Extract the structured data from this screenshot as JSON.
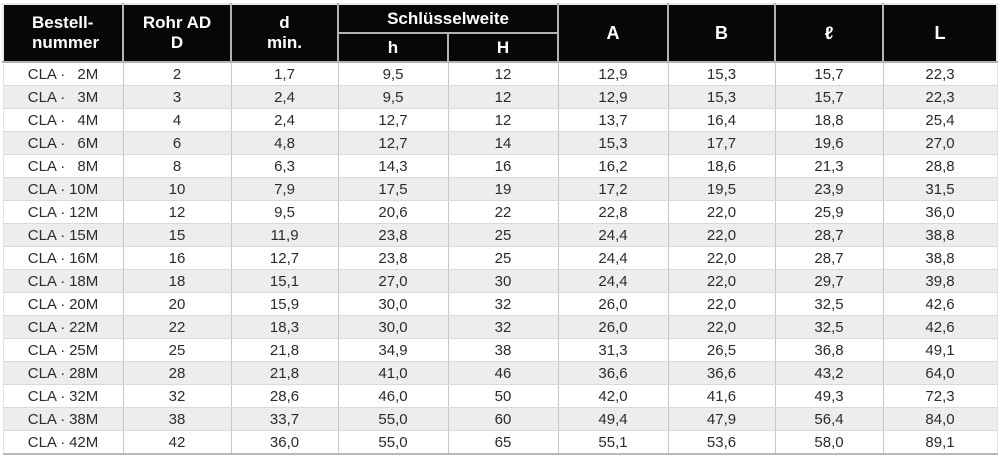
{
  "colors": {
    "header_bg": "#070707",
    "header_text": "#ffffff",
    "row_alt_bg": "#ededed",
    "grid_vertical": "#c6c6c6",
    "grid_horizontal": "#d9d9d9",
    "body_text": "#2b2b2b"
  },
  "table": {
    "headers": {
      "bestellnummer_line1": "Bestell-",
      "bestellnummer_line2": "nummer",
      "rohr_ad_line1": "Rohr AD",
      "rohr_ad_line2": "D",
      "d_min_line1": "d",
      "d_min_line2": "min.",
      "schluesselweite": "Schlüsselweite",
      "sub_h": "h",
      "sub_H": "H",
      "a": "A",
      "b": "B",
      "l_script": "ℓ",
      "l_big": "L"
    },
    "order_prefix": "CLA ·",
    "value_keys": [
      "rohr_ad",
      "d_min",
      "h",
      "H",
      "A",
      "B",
      "l",
      "L"
    ],
    "rows": [
      {
        "code": "2M",
        "rohr_ad": "2",
        "d_min": "1,7",
        "h": "9,5",
        "H": "12",
        "A": "12,9",
        "B": "15,3",
        "l": "15,7",
        "L": "22,3"
      },
      {
        "code": "3M",
        "rohr_ad": "3",
        "d_min": "2,4",
        "h": "9,5",
        "H": "12",
        "A": "12,9",
        "B": "15,3",
        "l": "15,7",
        "L": "22,3"
      },
      {
        "code": "4M",
        "rohr_ad": "4",
        "d_min": "2,4",
        "h": "12,7",
        "H": "12",
        "A": "13,7",
        "B": "16,4",
        "l": "18,8",
        "L": "25,4"
      },
      {
        "code": "6M",
        "rohr_ad": "6",
        "d_min": "4,8",
        "h": "12,7",
        "H": "14",
        "A": "15,3",
        "B": "17,7",
        "l": "19,6",
        "L": "27,0"
      },
      {
        "code": "8M",
        "rohr_ad": "8",
        "d_min": "6,3",
        "h": "14,3",
        "H": "16",
        "A": "16,2",
        "B": "18,6",
        "l": "21,3",
        "L": "28,8"
      },
      {
        "code": "10M",
        "rohr_ad": "10",
        "d_min": "7,9",
        "h": "17,5",
        "H": "19",
        "A": "17,2",
        "B": "19,5",
        "l": "23,9",
        "L": "31,5"
      },
      {
        "code": "12M",
        "rohr_ad": "12",
        "d_min": "9,5",
        "h": "20,6",
        "H": "22",
        "A": "22,8",
        "B": "22,0",
        "l": "25,9",
        "L": "36,0"
      },
      {
        "code": "15M",
        "rohr_ad": "15",
        "d_min": "11,9",
        "h": "23,8",
        "H": "25",
        "A": "24,4",
        "B": "22,0",
        "l": "28,7",
        "L": "38,8"
      },
      {
        "code": "16M",
        "rohr_ad": "16",
        "d_min": "12,7",
        "h": "23,8",
        "H": "25",
        "A": "24,4",
        "B": "22,0",
        "l": "28,7",
        "L": "38,8"
      },
      {
        "code": "18M",
        "rohr_ad": "18",
        "d_min": "15,1",
        "h": "27,0",
        "H": "30",
        "A": "24,4",
        "B": "22,0",
        "l": "29,7",
        "L": "39,8"
      },
      {
        "code": "20M",
        "rohr_ad": "20",
        "d_min": "15,9",
        "h": "30,0",
        "H": "32",
        "A": "26,0",
        "B": "22,0",
        "l": "32,5",
        "L": "42,6"
      },
      {
        "code": "22M",
        "rohr_ad": "22",
        "d_min": "18,3",
        "h": "30,0",
        "H": "32",
        "A": "26,0",
        "B": "22,0",
        "l": "32,5",
        "L": "42,6"
      },
      {
        "code": "25M",
        "rohr_ad": "25",
        "d_min": "21,8",
        "h": "34,9",
        "H": "38",
        "A": "31,3",
        "B": "26,5",
        "l": "36,8",
        "L": "49,1"
      },
      {
        "code": "28M",
        "rohr_ad": "28",
        "d_min": "21,8",
        "h": "41,0",
        "H": "46",
        "A": "36,6",
        "B": "36,6",
        "l": "43,2",
        "L": "64,0"
      },
      {
        "code": "32M",
        "rohr_ad": "32",
        "d_min": "28,6",
        "h": "46,0",
        "H": "50",
        "A": "42,0",
        "B": "41,6",
        "l": "49,3",
        "L": "72,3"
      },
      {
        "code": "38M",
        "rohr_ad": "38",
        "d_min": "33,7",
        "h": "55,0",
        "H": "60",
        "A": "49,4",
        "B": "47,9",
        "l": "56,4",
        "L": "84,0"
      },
      {
        "code": "42M",
        "rohr_ad": "42",
        "d_min": "36,0",
        "h": "55,0",
        "H": "65",
        "A": "55,1",
        "B": "53,6",
        "l": "58,0",
        "L": "89,1"
      }
    ]
  }
}
